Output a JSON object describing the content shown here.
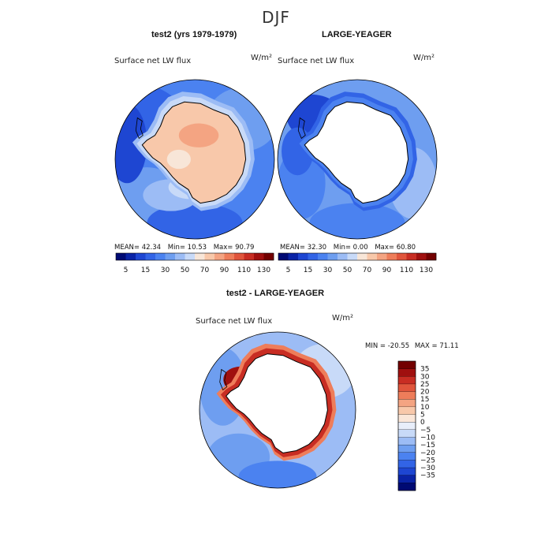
{
  "figure": {
    "title": "DJF"
  },
  "chart_data": [
    {
      "type": "heatmap",
      "projection": "south polar stereographic",
      "panel_title": "test2 (yrs 1979-1979)",
      "variable": "Surface net LW flux",
      "units": "W/m²",
      "stats": {
        "mean": "42.34",
        "min": "10.53",
        "max": "90.79"
      },
      "stats_labels": {
        "mean": "MEAN=",
        "min": "Min=",
        "max": "Max="
      },
      "colorbar": {
        "levels": [
          5,
          10,
          15,
          20,
          30,
          40,
          50,
          60,
          70,
          80,
          90,
          100,
          110,
          120,
          130
        ],
        "tick_labels": [
          "5",
          "15",
          "30",
          "50",
          "70",
          "90",
          "110",
          "130"
        ],
        "colors": [
          "#000a73",
          "#0a23a6",
          "#1e46d2",
          "#3264e6",
          "#4b82f0",
          "#6e9ef0",
          "#9cbcf5",
          "#c8daf8",
          "#f8e6d8",
          "#f8c8aa",
          "#f4a482",
          "#ee7d5a",
          "#e0553c",
          "#c82d23",
          "#a0100f",
          "#730000"
        ]
      },
      "regions": {
        "antarctica": "50-70",
        "southern_ocean": "15-30",
        "coastal_high_lat": "30-50"
      }
    },
    {
      "type": "heatmap",
      "projection": "south polar stereographic",
      "panel_title": "LARGE-YEAGER",
      "variable": "Surface net LW flux",
      "units": "W/m²",
      "stats": {
        "mean": "32.30",
        "min": "0.00",
        "max": "60.80"
      },
      "stats_labels": {
        "mean": "MEAN=",
        "min": "Min=",
        "max": "Max="
      },
      "colorbar": {
        "levels": [
          5,
          10,
          15,
          20,
          30,
          40,
          50,
          60,
          70,
          80,
          90,
          100,
          110,
          120,
          130
        ],
        "tick_labels": [
          "5",
          "15",
          "30",
          "50",
          "70",
          "90",
          "110",
          "130"
        ],
        "colors": [
          "#000a73",
          "#0a23a6",
          "#1e46d2",
          "#3264e6",
          "#4b82f0",
          "#6e9ef0",
          "#9cbcf5",
          "#c8daf8",
          "#f8e6d8",
          "#f8c8aa",
          "#f4a482",
          "#ee7d5a",
          "#e0553c",
          "#c82d23",
          "#a0100f",
          "#730000"
        ]
      },
      "regions": {
        "antarctica": "missing",
        "southern_ocean": "20-40",
        "weddell_sea": "5-15"
      }
    },
    {
      "type": "heatmap",
      "projection": "south polar stereographic",
      "panel_title": "test2 - LARGE-YEAGER",
      "variable": "Surface net LW flux",
      "units": "W/m²",
      "stats": {
        "min": "-20.55",
        "max": "71.11"
      },
      "stats_labels": {
        "min": "MIN =",
        "max": "MAX ="
      },
      "colorbar": {
        "orientation": "vertical",
        "levels": [
          -35,
          -30,
          -25,
          -20,
          -15,
          -10,
          -5,
          0,
          5,
          10,
          15,
          20,
          25,
          30,
          35
        ],
        "tick_labels": [
          "35",
          "30",
          "25",
          "20",
          "15",
          "10",
          "5",
          "0",
          "−5",
          "−10",
          "−15",
          "−20",
          "−25",
          "−30",
          "−35"
        ],
        "colors": [
          "#730000",
          "#a0100f",
          "#c82d23",
          "#e0553c",
          "#ee7d5a",
          "#f4a482",
          "#f8c8aa",
          "#fae6d8",
          "#e8eefa",
          "#c8daf8",
          "#9cbcf5",
          "#6e9ef0",
          "#4b82f0",
          "#3264e6",
          "#1e46d2",
          "#0a23a6",
          "#000a73"
        ]
      },
      "regions": {
        "antarctica": "missing",
        "coastal_ring": "15-35",
        "southern_ocean": "-15 to -5"
      }
    }
  ]
}
